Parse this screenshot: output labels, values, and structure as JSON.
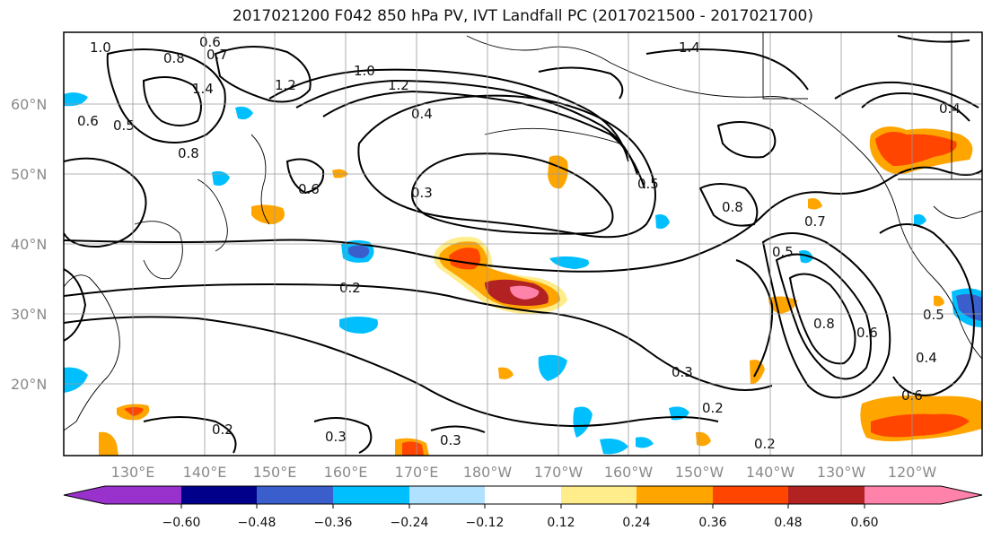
{
  "title": "2017021200 F042 850 hPa PV, IVT Landfall PC (2017021500 - 2017021700)",
  "lat_labels": [
    "60°N",
    "50°N",
    "40°N",
    "30°N",
    "20°N"
  ],
  "lon_labels": [
    "130°E",
    "140°E",
    "150°E",
    "160°E",
    "170°E",
    "180°W",
    "170°W",
    "160°W",
    "150°W",
    "140°W",
    "130°W",
    "120°W"
  ],
  "colorbar": {
    "ticks": [
      "−0.60",
      "−0.48",
      "−0.36",
      "−0.24",
      "−0.12",
      "0.12",
      "0.24",
      "0.36",
      "0.48",
      "0.60"
    ],
    "colors": [
      "#9932CC",
      "#00008B",
      "#3A5FCD",
      "#00BFFF",
      "#B0E2FF",
      "#FFFFFF",
      "#FFEC8B",
      "#FFA500",
      "#FF4500",
      "#B22222",
      "#FF82AB",
      "#FF82AB"
    ]
  },
  "contour_labels": [
    "1.0",
    "0.6",
    "0.7",
    "0.8",
    "1.4",
    "1.2",
    "0.6",
    "0.5",
    "1.0",
    "1.2",
    "0.4",
    "0.8",
    "0.6",
    "0.3",
    "0.2",
    "0.5",
    "0.8",
    "0.7",
    "0.5",
    "0.8",
    "0.6",
    "0.5",
    "0.4",
    "0.6",
    "0.3",
    "0.2",
    "0.2",
    "0.2",
    "0.3",
    "0.3",
    "1.4",
    "0.4"
  ]
}
